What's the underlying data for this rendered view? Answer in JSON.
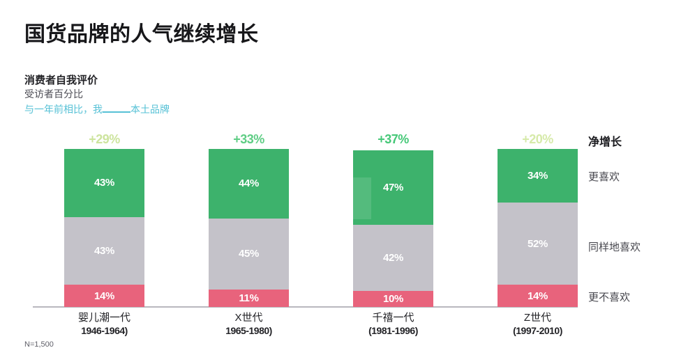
{
  "header": {
    "title": "国货品牌的人气继续增长",
    "subtitle": "消费者自我评价",
    "unit_note": "受访者百分比",
    "prompt_prefix": "与一年前相比，我",
    "prompt_suffix": "本土品牌",
    "accent_cyan": "#56c1d6"
  },
  "chart_data": {
    "type": "bar",
    "stacked": true,
    "title": "国货品牌的人气继续增长",
    "ylabel": "受访者百分比",
    "ylim": [
      0,
      100
    ],
    "grid": false,
    "legend_position": "right",
    "categories": [
      "婴儿潮一代",
      "X世代",
      "千禧一代",
      "Z世代"
    ],
    "category_sublabels": [
      "1946-1964)",
      "1965-1980)",
      "(1981-1996)",
      "(1997-2010)"
    ],
    "series": [
      {
        "name": "更喜欢",
        "color": "#3db26c",
        "values": [
          43,
          44,
          47,
          34
        ]
      },
      {
        "name": "同样地喜欢",
        "color": "#c4c2c9",
        "values": [
          43,
          45,
          42,
          52
        ]
      },
      {
        "name": "更不喜欢",
        "color": "#e8637c",
        "values": [
          14,
          11,
          10,
          14
        ]
      }
    ],
    "net_labels": {
      "title": "净增长",
      "values": [
        "+29%",
        "+33%",
        "+37%",
        "+20%"
      ],
      "colors": [
        "#cde49e",
        "#5ecd84",
        "#46c878",
        "#d6eaa9"
      ]
    },
    "value_suffix": "%"
  },
  "footer": {
    "sample_note": "N=1,500"
  }
}
